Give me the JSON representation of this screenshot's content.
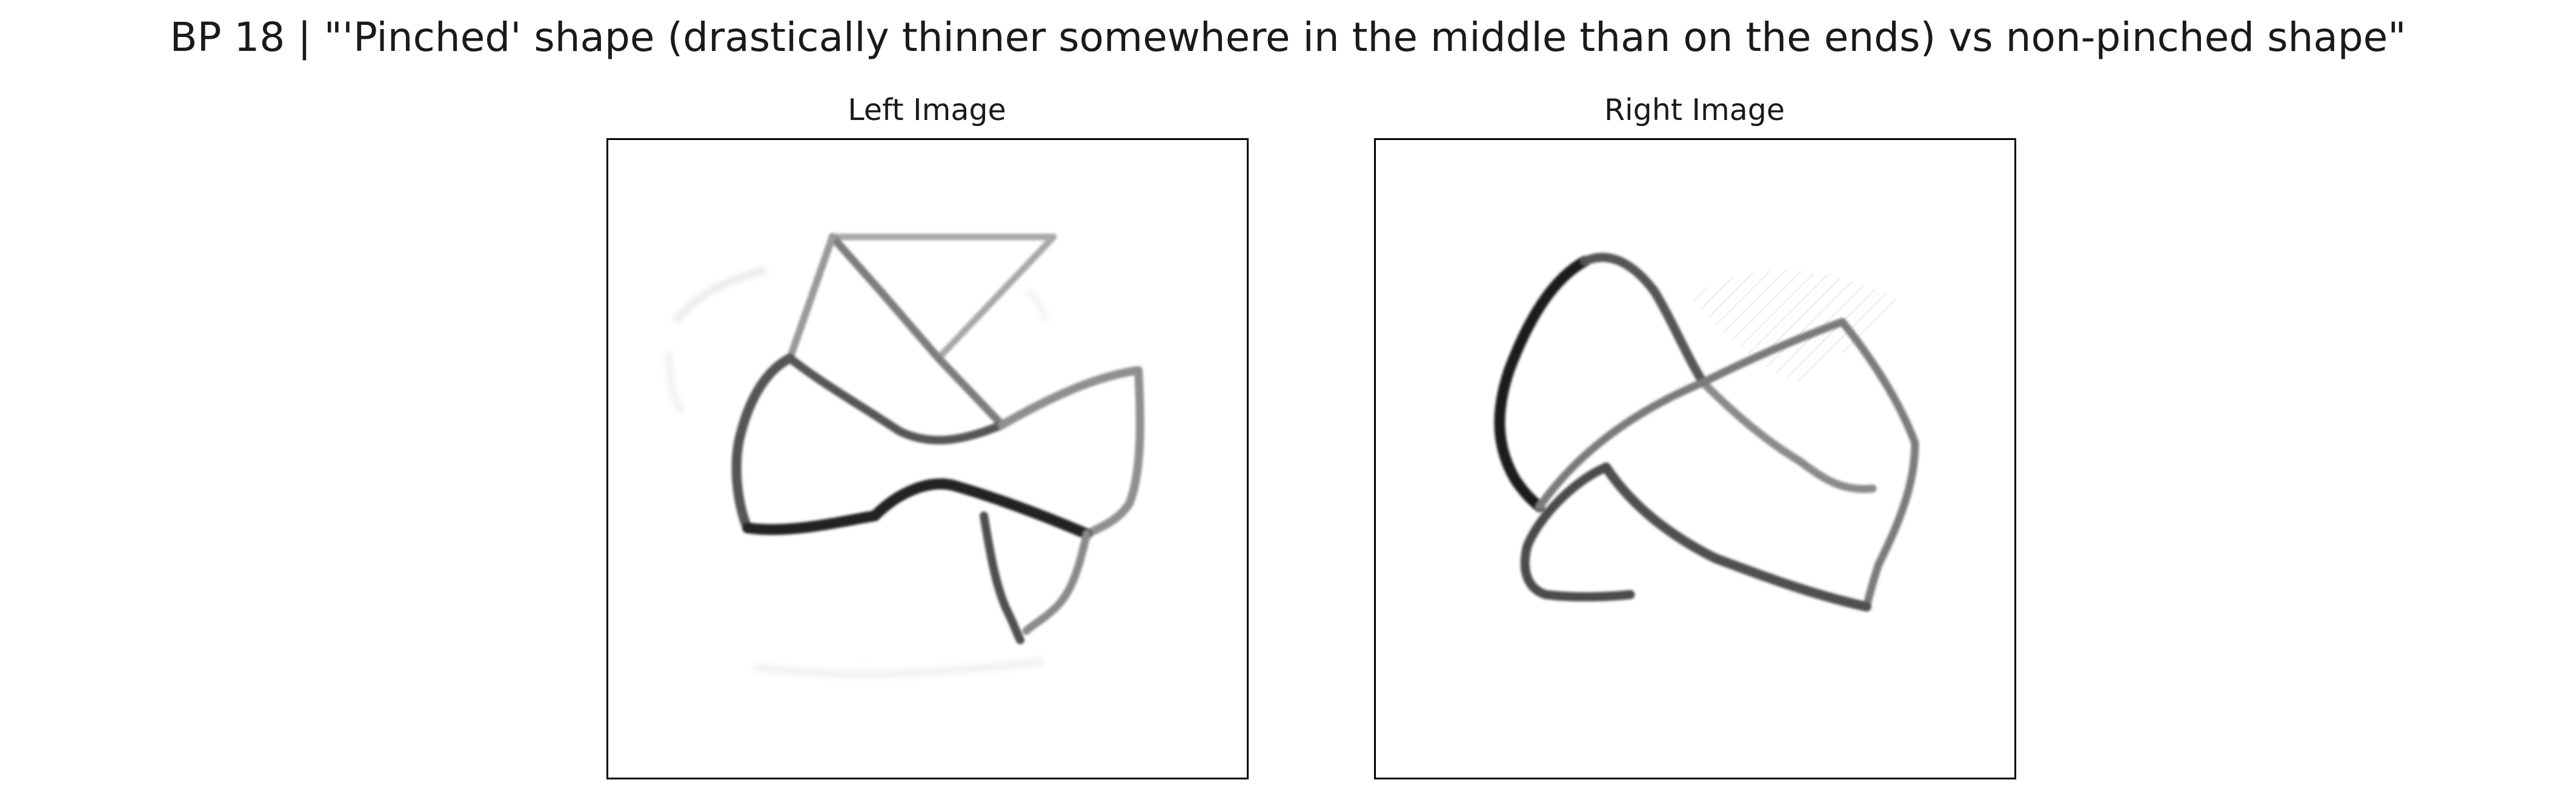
{
  "figure": {
    "title": "BP 18 | \"'Pinched' shape (drastically thinner somewhere in the middle than on the ends) vs non-pinched shape\""
  },
  "panels": {
    "left": {
      "title": "Left Image"
    },
    "right": {
      "title": "Right Image"
    }
  },
  "colors": {
    "ink_dark": "#111111",
    "ink_mid": "#6a6a6a",
    "ink_light": "#bdbdbd",
    "frame": "#000000",
    "background": "#ffffff"
  }
}
